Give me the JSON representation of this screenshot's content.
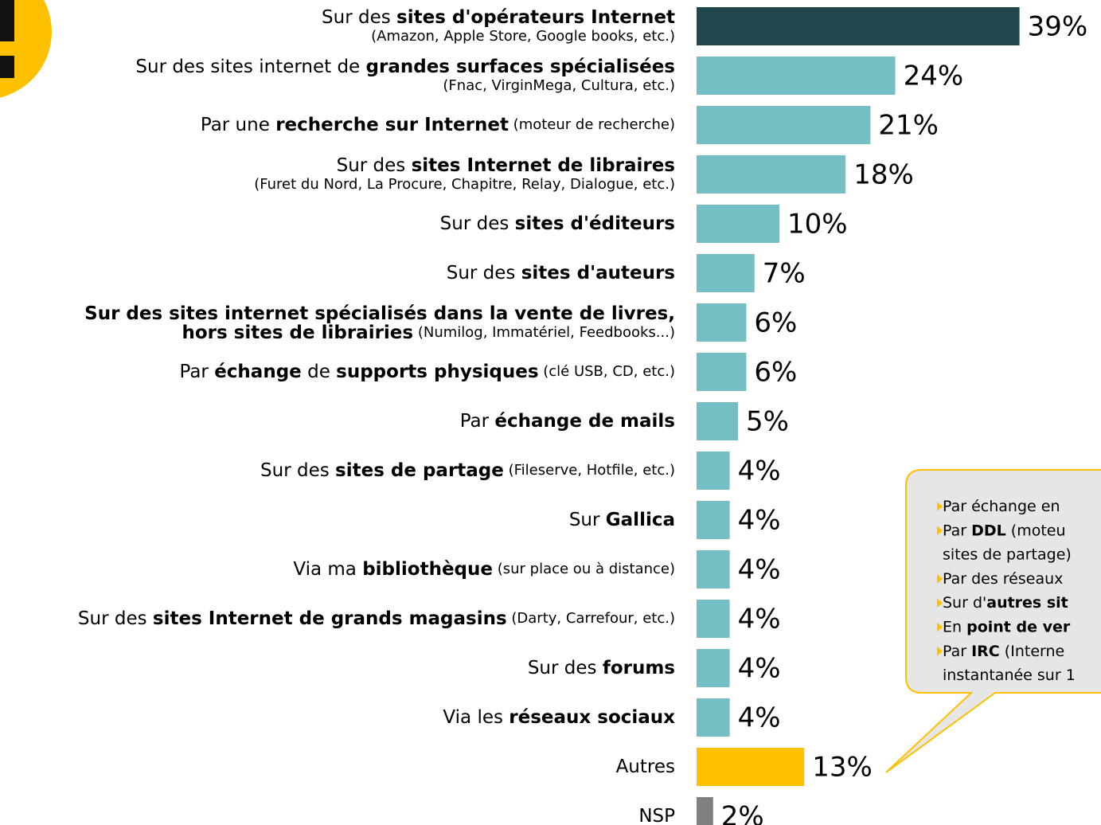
{
  "chart_data": {
    "type": "bar",
    "orientation": "horizontal",
    "categories": [
      [
        [
          {
            "text": "Sur des "
          },
          {
            "text": "sites d'opérateurs Internet",
            "bold": true
          }
        ],
        [
          {
            "text": "(Amazon, Apple Store, Google books, etc.)",
            "small": true
          }
        ]
      ],
      [
        [
          {
            "text": "Sur des sites internet de "
          },
          {
            "text": "grandes surfaces spécialisées",
            "bold": true
          }
        ],
        [
          {
            "text": "(Fnac, VirginMega, Cultura, etc.)",
            "small": true
          }
        ]
      ],
      [
        [
          {
            "text": "Par une "
          },
          {
            "text": "recherche sur Internet",
            "bold": true
          },
          {
            "text": " (moteur de recherche)",
            "small": true
          }
        ]
      ],
      [
        [
          {
            "text": "Sur des "
          },
          {
            "text": "sites Internet de libraires",
            "bold": true
          }
        ],
        [
          {
            "text": "(Furet du Nord, La Procure, Chapitre, Relay, Dialogue, etc.)",
            "small": true
          }
        ]
      ],
      [
        [
          {
            "text": "Sur des "
          },
          {
            "text": "sites d'éditeurs",
            "bold": true
          }
        ]
      ],
      [
        [
          {
            "text": "Sur des "
          },
          {
            "text": "sites d'auteurs",
            "bold": true
          }
        ]
      ],
      [
        [
          {
            "text": "Sur des sites internet spécialisés dans la vente de livres,",
            "bold": true
          }
        ],
        [
          {
            "text": "hors sites de librairies",
            "bold": true
          },
          {
            "text": " (Numilog, Immatériel,  Feedbooks...)",
            "small": true
          }
        ]
      ],
      [
        [
          {
            "text": "Par "
          },
          {
            "text": "échange",
            "bold": true
          },
          {
            "text": " de "
          },
          {
            "text": "supports physiques",
            "bold": true
          },
          {
            "text": " (clé USB, CD, etc.)",
            "small": true
          }
        ]
      ],
      [
        [
          {
            "text": "Par "
          },
          {
            "text": "échange de mails",
            "bold": true
          }
        ]
      ],
      [
        [
          {
            "text": "Sur des "
          },
          {
            "text": "sites de partage",
            "bold": true
          },
          {
            "text": " (Fileserve, Hotfile, etc.)",
            "small": true
          }
        ]
      ],
      [
        [
          {
            "text": "Sur "
          },
          {
            "text": "Gallica",
            "bold": true
          }
        ]
      ],
      [
        [
          {
            "text": "Via ma "
          },
          {
            "text": "bibliothèque",
            "bold": true
          },
          {
            "text": " (sur place ou à distance)",
            "small": true
          }
        ]
      ],
      [
        [
          {
            "text": "Sur des "
          },
          {
            "text": "sites Internet de grands magasins",
            "bold": true
          },
          {
            "text": " (Darty, Carrefour, etc.)",
            "small": true
          }
        ]
      ],
      [
        [
          {
            "text": "Sur des "
          },
          {
            "text": "forums",
            "bold": true
          }
        ]
      ],
      [
        [
          {
            "text": "Via les "
          },
          {
            "text": "réseaux sociaux",
            "bold": true
          }
        ]
      ],
      [
        [
          {
            "text": "Autres"
          }
        ]
      ],
      [
        [
          {
            "text": "NSP"
          }
        ]
      ]
    ],
    "values": [
      39,
      24,
      21,
      18,
      10,
      7,
      6,
      6,
      5,
      4,
      4,
      4,
      4,
      4,
      4,
      13,
      2
    ],
    "value_labels": [
      "39%",
      "24%",
      "21%",
      "18%",
      "10%",
      "7%",
      "6%",
      "6%",
      "5%",
      "4%",
      "4%",
      "4%",
      "4%",
      "4%",
      "4%",
      "13%",
      "2%"
    ],
    "colors": [
      "#1f474c",
      "#74bec4",
      "#74bec4",
      "#74bec4",
      "#74bec4",
      "#74bec4",
      "#74bec4",
      "#74bec4",
      "#74bec4",
      "#74bec4",
      "#74bec4",
      "#74bec4",
      "#74bec4",
      "#74bec4",
      "#74bec4",
      "#ffc000",
      "#808080"
    ],
    "callout": [
      {
        "bullet": true,
        "runs": [
          {
            "text": "Par échange en"
          }
        ]
      },
      {
        "bullet": true,
        "runs": [
          {
            "text": "Par "
          },
          {
            "text": "DDL",
            "bold": true
          },
          {
            "text": " (moteu"
          }
        ]
      },
      {
        "bullet": false,
        "runs": [
          {
            "text": "sites de partage)"
          }
        ]
      },
      {
        "bullet": true,
        "runs": [
          {
            "text": "Par des réseaux"
          }
        ]
      },
      {
        "bullet": true,
        "runs": [
          {
            "text": "Sur d'"
          },
          {
            "text": "autres sit",
            "bold": true
          }
        ]
      },
      {
        "bullet": true,
        "runs": [
          {
            "text": "En "
          },
          {
            "text": "point de ver",
            "bold": true
          }
        ]
      },
      {
        "bullet": true,
        "runs": [
          {
            "text": "Par "
          },
          {
            "text": "IRC",
            "bold": true
          },
          {
            "text": " (Interne"
          }
        ]
      },
      {
        "bullet": false,
        "runs": [
          {
            "text": "instantanée sur 1"
          }
        ]
      }
    ]
  }
}
